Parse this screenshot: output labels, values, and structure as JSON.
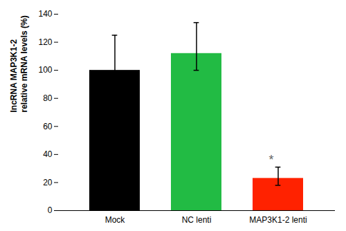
{
  "chart_data": {
    "type": "bar",
    "categories": [
      "Mock",
      "NC lenti",
      "MAP3K1-2 lenti"
    ],
    "values": [
      100,
      112,
      23
    ],
    "errors_upper": [
      25,
      22,
      8
    ],
    "errors_lower": [
      5,
      12,
      5
    ],
    "colors": [
      "#000000",
      "#22bb44",
      "#ff2200"
    ],
    "ylabel": "lncRNA MAP3K1-2\nrelative mRNA levels (%)",
    "ylim": [
      0,
      140
    ],
    "yticks": [
      0,
      20,
      40,
      60,
      80,
      100,
      120,
      140
    ],
    "annotations": [
      {
        "text": "*",
        "category": "MAP3K1-2 lenti"
      }
    ]
  }
}
